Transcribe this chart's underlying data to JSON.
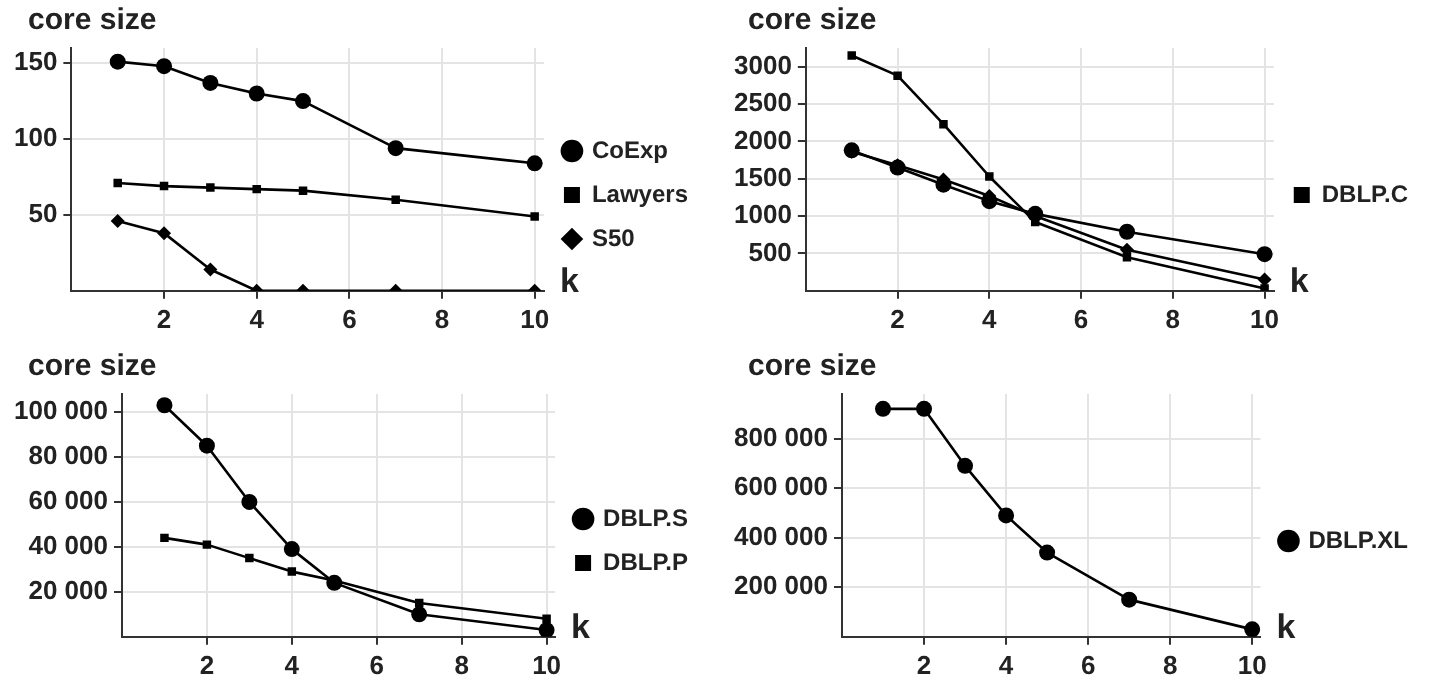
{
  "chart_data": [
    {
      "type": "line",
      "ylabel": "core size",
      "xlabel": "k",
      "x": [
        1,
        2,
        3,
        4,
        5,
        7,
        10
      ],
      "xlim": [
        0,
        10.2
      ],
      "xticks": [
        2,
        4,
        6,
        8,
        10
      ],
      "ylim": [
        0,
        160
      ],
      "yticks": [
        50,
        100,
        150
      ],
      "grid": true,
      "legend": "right",
      "series": [
        {
          "name": "CoExp",
          "color": "#000000",
          "marker": "circle",
          "values": [
            151,
            148,
            137,
            130,
            125,
            94,
            84
          ]
        },
        {
          "name": "Lawyers",
          "color": "#000000",
          "marker": "square",
          "values": [
            71,
            69,
            68,
            67,
            66,
            60,
            49
          ]
        },
        {
          "name": "S50",
          "color": "#000000",
          "marker": "diamond",
          "values": [
            46,
            38,
            14,
            0,
            0,
            0,
            0
          ]
        }
      ]
    },
    {
      "type": "line",
      "ylabel": "core size",
      "xlabel": "k",
      "x": [
        1,
        2,
        3,
        4,
        5,
        7,
        10
      ],
      "xlim": [
        0,
        10.2
      ],
      "xticks": [
        2,
        4,
        6,
        8,
        10
      ],
      "ylim": [
        0,
        3250
      ],
      "yticks": [
        500,
        1000,
        1500,
        2000,
        2500,
        3000
      ],
      "grid": true,
      "legend": "right",
      "series": [
        {
          "color": "#000000",
          "marker": "circle",
          "values": [
            1880,
            1650,
            1420,
            1200,
            1030,
            790,
            490
          ]
        },
        {
          "name": "DBLP.C",
          "color": "#000000",
          "marker": "square",
          "values": [
            3150,
            2880,
            2230,
            1530,
            920,
            450,
            30
          ]
        },
        {
          "color": "#000000",
          "marker": "diamond",
          "values": [
            1860,
            1680,
            1490,
            1270,
            1000,
            550,
            150
          ]
        }
      ]
    },
    {
      "type": "line",
      "ylabel": "core size",
      "xlabel": "k",
      "x": [
        1,
        2,
        3,
        4,
        5,
        7,
        10
      ],
      "xlim": [
        0,
        10.2
      ],
      "xticks": [
        2,
        4,
        6,
        8,
        10
      ],
      "ylim": [
        0,
        108000
      ],
      "yticks": [
        {
          "value": 20000,
          "label": "20 000"
        },
        {
          "value": 40000,
          "label": "40 000"
        },
        {
          "value": 60000,
          "label": "60 000"
        },
        {
          "value": 80000,
          "label": "80 000"
        },
        {
          "value": 100000,
          "label": "100 000"
        }
      ],
      "grid": true,
      "legend": "right",
      "series": [
        {
          "name": "DBLP.S",
          "color": "#000000",
          "marker": "circle",
          "values": [
            103000,
            85000,
            60000,
            39000,
            24000,
            10000,
            3000
          ]
        },
        {
          "name": "DBLP.P",
          "color": "#000000",
          "marker": "square",
          "values": [
            44000,
            41000,
            35000,
            29000,
            25000,
            15000,
            8000
          ]
        }
      ]
    },
    {
      "type": "line",
      "ylabel": "core size",
      "xlabel": "k",
      "x": [
        1,
        2,
        3,
        4,
        5,
        7,
        10
      ],
      "xlim": [
        0,
        10.2
      ],
      "xticks": [
        2,
        4,
        6,
        8,
        10
      ],
      "ylim": [
        0,
        980000
      ],
      "yticks": [
        {
          "value": 200000,
          "label": "200 000"
        },
        {
          "value": 400000,
          "label": "400 000"
        },
        {
          "value": 600000,
          "label": "600 000"
        },
        {
          "value": 800000,
          "label": "800 000"
        }
      ],
      "grid": true,
      "legend": "right",
      "series": [
        {
          "name": "DBLP.XL",
          "color": "#000000",
          "marker": "circle",
          "values": [
            920000,
            920000,
            690000,
            490000,
            340000,
            150000,
            30000
          ]
        }
      ]
    }
  ]
}
